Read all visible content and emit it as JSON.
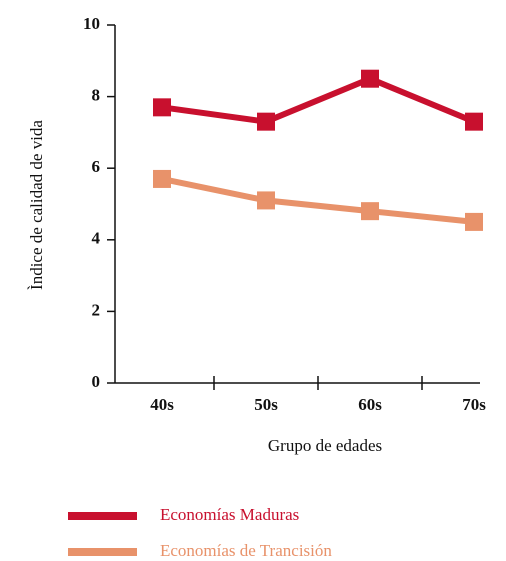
{
  "chart_data": {
    "type": "line",
    "x_label": "Grupo de edades",
    "y_label": "Ìndice de calidad de vida",
    "categories": [
      "40s",
      "50s",
      "60s",
      "70s"
    ],
    "series": [
      {
        "name": "Economías  Maduras",
        "color": "#c8102e",
        "values": [
          7.7,
          7.3,
          8.5,
          7.3
        ]
      },
      {
        "name": "Economías de Trancisión",
        "color": "#e8926a",
        "values": [
          5.7,
          5.1,
          4.8,
          4.5
        ]
      }
    ],
    "ylim": [
      0,
      10
    ],
    "yticks": [
      0,
      2,
      4,
      6,
      8,
      10
    ]
  }
}
